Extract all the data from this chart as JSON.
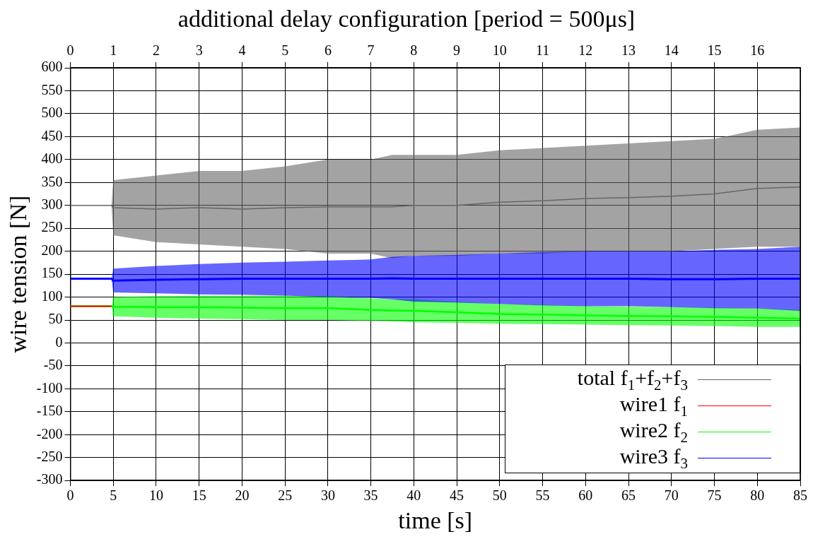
{
  "chart_data": {
    "type": "line",
    "title": "additional delay configuration [period = 500μs]",
    "xlabel": "time [s]",
    "ylabel": "wire tension [N]",
    "xlim": [
      0,
      85
    ],
    "xticks": [
      0,
      5,
      10,
      15,
      20,
      25,
      30,
      35,
      40,
      45,
      50,
      55,
      60,
      65,
      70,
      75,
      80,
      85
    ],
    "x2lim": [
      0,
      17
    ],
    "x2ticks": [
      0,
      1,
      2,
      3,
      4,
      5,
      6,
      7,
      8,
      9,
      10,
      11,
      12,
      13,
      14,
      15,
      16
    ],
    "ylim": [
      -300,
      600
    ],
    "yticks": [
      -300,
      -250,
      -200,
      -150,
      -100,
      -50,
      0,
      50,
      100,
      150,
      200,
      250,
      300,
      350,
      400,
      450,
      500,
      550,
      600
    ],
    "grid": true,
    "legend": "bottom right",
    "line_style": "solid",
    "marker": "none",
    "x": [
      0,
      4.8,
      5,
      10,
      15,
      20,
      25,
      30,
      35,
      37.5,
      40,
      45,
      50,
      55,
      60,
      65,
      70,
      75,
      80,
      85
    ],
    "series": [
      {
        "name": "total f$_{1}$+f$_{2}$+f$_{3}$",
        "color": "#666666",
        "values": [
          300,
          300,
          295,
          292,
          295,
          292,
          295,
          297,
          297,
          297,
          300,
          300,
          307,
          310,
          315,
          317,
          320,
          325,
          337,
          340
        ],
        "upper": [
          300,
          300,
          355,
          365,
          375,
          375,
          385,
          400,
          400,
          410,
          410,
          410,
          420,
          425,
          430,
          435,
          440,
          445,
          465,
          470
        ],
        "lower": [
          300,
          300,
          235,
          220,
          215,
          210,
          205,
          195,
          195,
          185,
          190,
          190,
          195,
          195,
          200,
          200,
          200,
          205,
          210,
          210
        ]
      },
      {
        "name": "wire1 f$_{1}$",
        "color": "#ff0000",
        "x": [
          0,
          4.8
        ],
        "values": [
          80,
          80
        ]
      },
      {
        "name": "wire2 f$_{2}$",
        "color": "#00ff00",
        "values": [
          80,
          80,
          79,
          78,
          78,
          77,
          76,
          76,
          72,
          71,
          70,
          67,
          63,
          62,
          60,
          59,
          58,
          57,
          55,
          53
        ],
        "upper": [
          80,
          80,
          100,
          102,
          103,
          103,
          103,
          102,
          97,
          95,
          95,
          90,
          85,
          83,
          80,
          79,
          78,
          77,
          75,
          72
        ],
        "lower": [
          80,
          80,
          58,
          55,
          53,
          52,
          50,
          50,
          48,
          47,
          45,
          44,
          42,
          41,
          40,
          39,
          38,
          37,
          35,
          35
        ]
      },
      {
        "name": "wire3 f$_{3}$",
        "color": "#0000ff",
        "values": [
          140,
          140,
          136,
          138,
          139,
          140,
          140,
          140,
          140,
          141,
          140,
          140,
          140,
          140,
          140,
          140,
          139,
          139,
          140,
          140
        ],
        "upper": [
          140,
          140,
          162,
          168,
          172,
          175,
          177,
          180,
          182,
          188,
          190,
          192,
          195,
          198,
          200,
          200,
          200,
          203,
          205,
          210
        ],
        "lower": [
          140,
          140,
          110,
          108,
          106,
          105,
          103,
          100,
          98,
          95,
          90,
          88,
          85,
          82,
          80,
          80,
          78,
          76,
          75,
          70
        ]
      }
    ]
  }
}
